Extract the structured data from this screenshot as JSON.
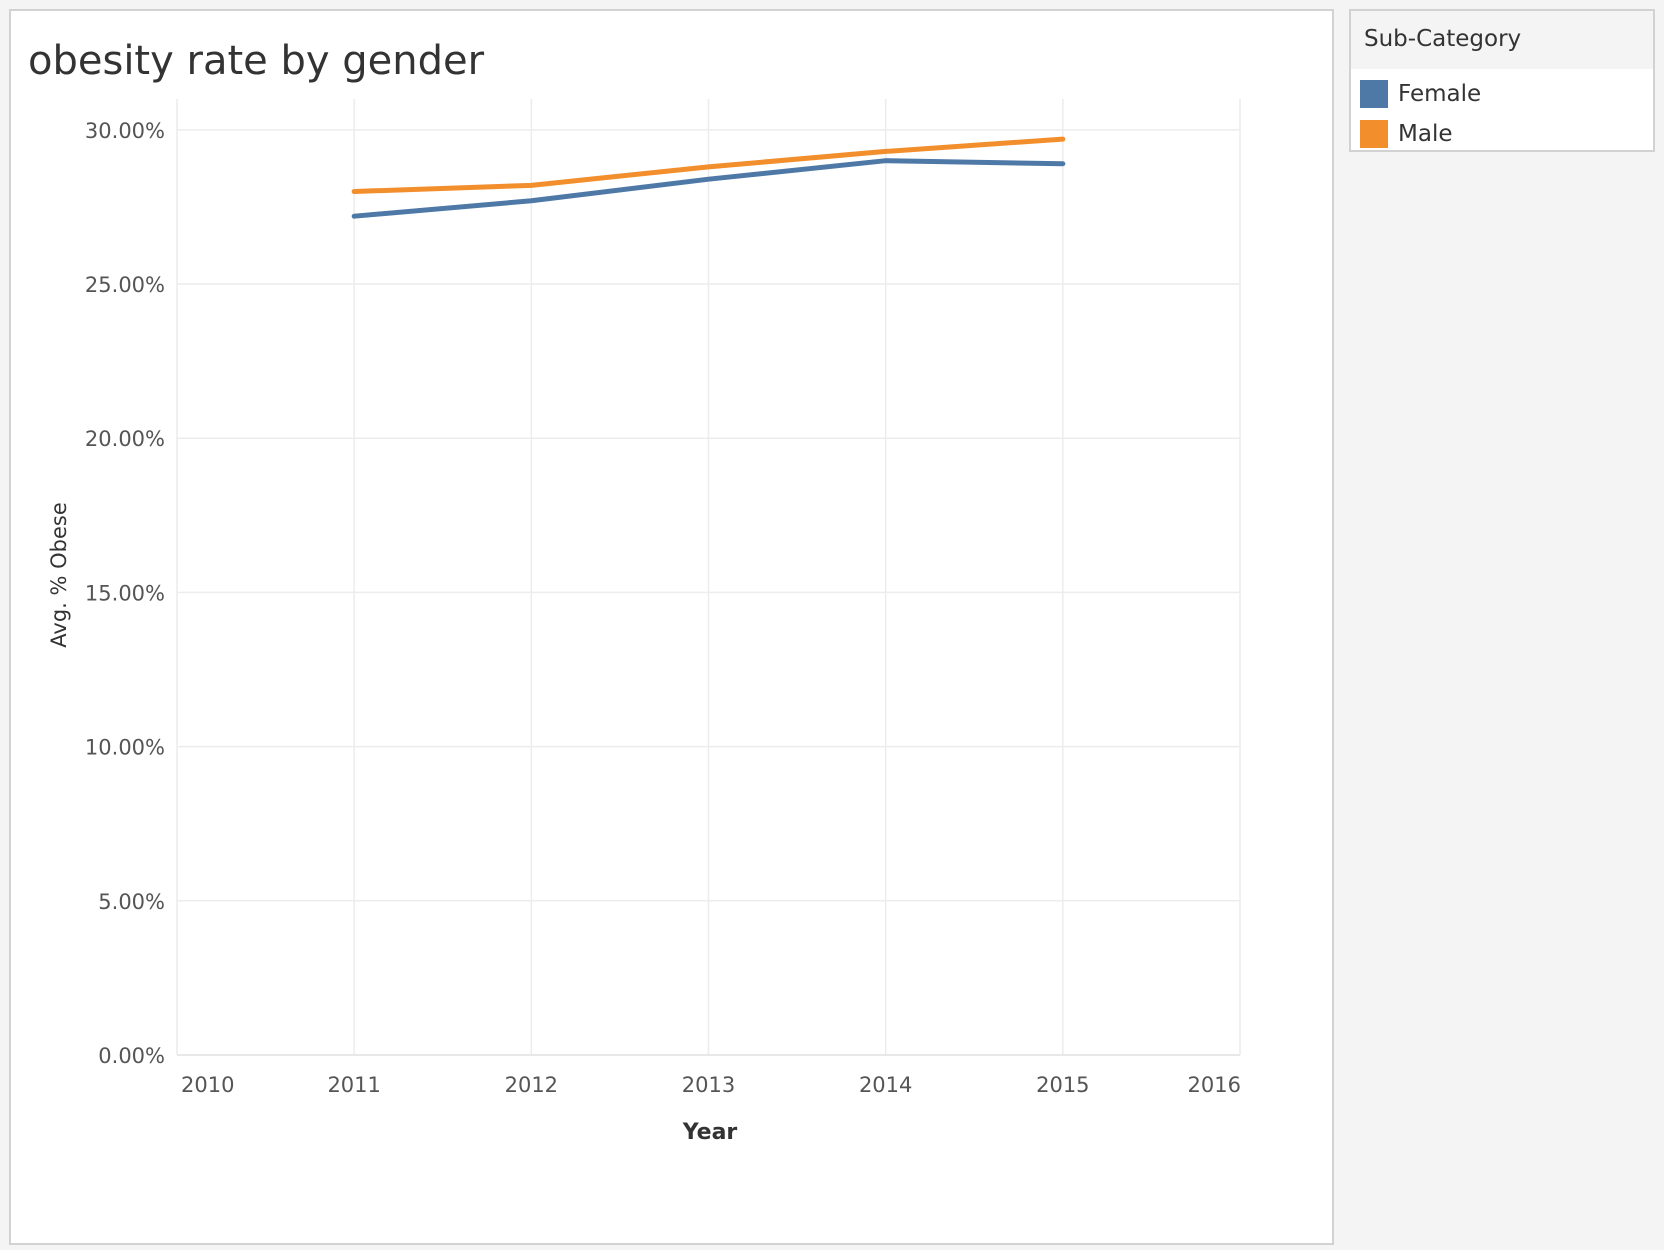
{
  "chart_data": {
    "type": "line",
    "title": "obesity rate by gender",
    "xlabel": "Year",
    "ylabel": "Avg. % Obese",
    "x": [
      2011,
      2012,
      2013,
      2014,
      2015
    ],
    "xlim": [
      2010,
      2016
    ],
    "xticks": [
      "2010",
      "2011",
      "2012",
      "2013",
      "2014",
      "2015",
      "2016"
    ],
    "ylim": [
      0,
      31
    ],
    "yticks": [
      {
        "value": 0,
        "label": "0.00%"
      },
      {
        "value": 5,
        "label": "5.00%"
      },
      {
        "value": 10,
        "label": "10.00%"
      },
      {
        "value": 15,
        "label": "15.00%"
      },
      {
        "value": 20,
        "label": "20.00%"
      },
      {
        "value": 25,
        "label": "25.00%"
      },
      {
        "value": 30,
        "label": "30.00%"
      }
    ],
    "grid": true,
    "legend_placement": "right",
    "series": [
      {
        "name": "Female",
        "color": "#4e79a7",
        "values": [
          27.2,
          27.7,
          28.4,
          29.0,
          28.9
        ]
      },
      {
        "name": "Male",
        "color": "#f28e2b",
        "values": [
          28.0,
          28.2,
          28.8,
          29.3,
          29.7
        ]
      }
    ]
  },
  "legend": {
    "title": "Sub-Category",
    "items": [
      {
        "label": "Female",
        "color": "#4e79a7"
      },
      {
        "label": "Male",
        "color": "#f28e2b"
      }
    ]
  }
}
